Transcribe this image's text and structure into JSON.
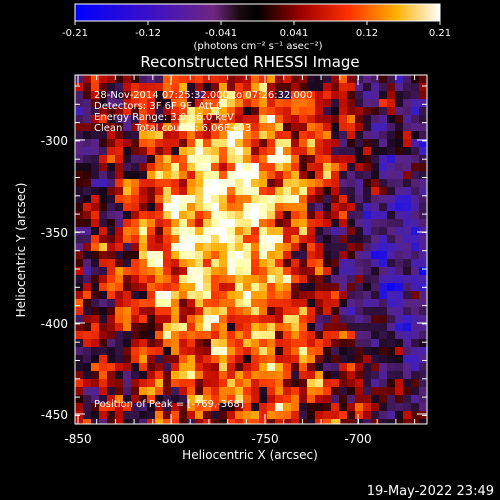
{
  "colorbar": {
    "tick_labels": [
      "-0.21",
      "-0.12",
      "-0.041",
      "0.041",
      "0.12",
      "0.21"
    ],
    "units_label": "(photons cm⁻² s⁻¹ asec⁻²)"
  },
  "plot": {
    "title": "Reconstructed RHESSI Image",
    "annotations": [
      "28-Nov-2014 07:25:32.000 to 07:26:32.000",
      "Detectors: 3F 6F 9F, Att 0",
      "Energy Range: 3.0 - 6.0 keV",
      "Clean    Total counts: 6.06E+03"
    ],
    "peak_label": "Position of Peak = [-769,-368]",
    "xlabel": "Heliocentric X (arcsec)",
    "ylabel": "Heliocentric Y (arcsec)",
    "x_tick_labels": [
      "-850",
      "-800",
      "-750",
      "-700"
    ],
    "y_tick_labels": [
      "-300",
      "-350",
      "-400",
      "-450"
    ]
  },
  "footer": {
    "timestamp": "19-May-2022 23:49"
  },
  "colors": {
    "background": "#000000",
    "foreground": "#ffffff",
    "colormap_negative": [
      "#0000ff",
      "#4020b0",
      "#6b2a88"
    ],
    "colormap_positive": [
      "#000000",
      "#ff0000",
      "#ff8000",
      "#ffff80",
      "#ffffff"
    ]
  }
}
